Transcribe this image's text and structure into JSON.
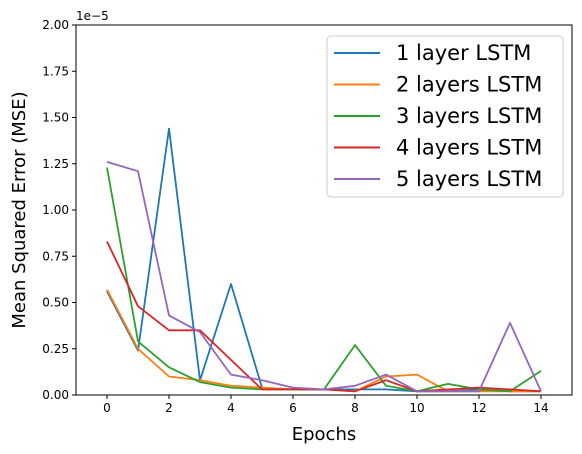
{
  "chart_data": {
    "type": "line",
    "xlabel": "Epochs",
    "ylabel": "Mean Squared Error (MSE)",
    "y_offset_label": "1e−5",
    "xlim": [
      -1,
      15
    ],
    "ylim": [
      0,
      2.0
    ],
    "xticks": [
      0,
      2,
      4,
      6,
      8,
      10,
      12,
      14
    ],
    "xtick_labels": [
      "0",
      "2",
      "4",
      "6",
      "8",
      "10",
      "12",
      "14"
    ],
    "yticks": [
      0,
      0.25,
      0.5,
      0.75,
      1.0,
      1.25,
      1.5,
      1.75,
      2.0
    ],
    "ytick_labels": [
      "0.00",
      "0.25",
      "0.50",
      "0.75",
      "1.00",
      "1.25",
      "1.50",
      "1.75",
      "2.00"
    ],
    "grid": false,
    "legend_position": "top-right",
    "x": [
      0,
      1,
      2,
      3,
      4,
      5,
      6,
      7,
      8,
      9,
      10,
      11,
      12,
      13,
      14
    ],
    "series": [
      {
        "name": "1 layer LSTM",
        "color": "#1f77b4",
        "values": [
          0.56,
          0.24,
          1.44,
          0.08,
          0.6,
          0.04,
          0.03,
          0.03,
          0.03,
          0.03,
          0.02,
          0.02,
          0.03,
          0.02,
          0.02
        ]
      },
      {
        "name": "2 layers LSTM",
        "color": "#ff7f0e",
        "values": [
          0.57,
          0.25,
          0.1,
          0.08,
          0.05,
          0.04,
          0.03,
          0.03,
          0.02,
          0.1,
          0.11,
          0.02,
          0.02,
          0.02,
          0.02
        ]
      },
      {
        "name": "3 layers LSTM",
        "color": "#2ca02c",
        "values": [
          1.23,
          0.29,
          0.15,
          0.07,
          0.04,
          0.03,
          0.03,
          0.03,
          0.27,
          0.05,
          0.02,
          0.06,
          0.03,
          0.02,
          0.13
        ]
      },
      {
        "name": "4 layers LSTM",
        "color": "#d62728",
        "values": [
          0.83,
          0.48,
          0.35,
          0.35,
          0.19,
          0.03,
          0.03,
          0.03,
          0.02,
          0.08,
          0.02,
          0.03,
          0.04,
          0.03,
          0.02
        ]
      },
      {
        "name": "5 layers LSTM",
        "color": "#9467bd",
        "values": [
          1.26,
          1.21,
          0.43,
          0.34,
          0.11,
          0.08,
          0.04,
          0.03,
          0.05,
          0.11,
          0.02,
          0.02,
          0.02,
          0.39,
          0.02
        ]
      }
    ]
  }
}
